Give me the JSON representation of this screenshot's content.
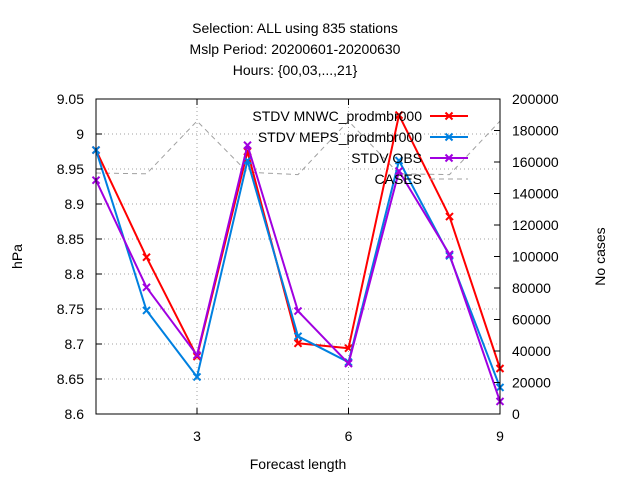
{
  "title_lines": [
    "Selection: ALL using   835 stations",
    "Mslp   Period: 20200601-20200630",
    "Hours: {00,03,...,21}"
  ],
  "chart_data": {
    "type": "line",
    "title": "Selection: ALL using   835 stations | Mslp   Period: 20200601-20200630 | Hours: {00,03,...,21}",
    "xlabel": "Forecast length",
    "ylabel": "hPa",
    "y2label": "No cases",
    "x": [
      1,
      2,
      3,
      4,
      5,
      6,
      7,
      8,
      9
    ],
    "xlim": [
      1,
      9
    ],
    "xticks": [
      3,
      6,
      9
    ],
    "ylim": [
      8.6,
      9.05
    ],
    "yticks": [
      8.6,
      8.65,
      8.7,
      8.75,
      8.8,
      8.85,
      8.9,
      8.95,
      9.0,
      9.05
    ],
    "ytick_labels": [
      "8.6",
      "8.65",
      "8.7",
      "8.75",
      "8.8",
      "8.85",
      "8.9",
      "8.95",
      "9",
      "9.05"
    ],
    "y2lim": [
      0,
      200000
    ],
    "y2ticks": [
      0,
      20000,
      40000,
      60000,
      80000,
      100000,
      120000,
      140000,
      160000,
      180000,
      200000
    ],
    "grid": true,
    "legend_position": "top-right",
    "series": [
      {
        "name": "STDV MNWC_prodmbr000",
        "color": "#ff0000",
        "axis": "left",
        "marker": "x",
        "values": [
          8.977,
          8.824,
          8.682,
          8.975,
          8.701,
          8.694,
          9.027,
          8.882,
          8.665
        ]
      },
      {
        "name": "STDV MEPS_prodmbr000",
        "color": "#0080e0",
        "axis": "left",
        "marker": "x",
        "values": [
          8.977,
          8.748,
          8.653,
          8.962,
          8.711,
          8.674,
          8.962,
          8.826,
          8.638
        ]
      },
      {
        "name": "STDV OBS",
        "color": "#a000e0",
        "axis": "left",
        "marker": "x",
        "values": [
          8.934,
          8.781,
          8.684,
          8.984,
          8.747,
          8.672,
          8.947,
          8.828,
          8.618
        ]
      },
      {
        "name": "CASES",
        "color": "#a0a0a0",
        "axis": "right",
        "dashed": true,
        "marker": "none",
        "values": [
          153000,
          152500,
          186000,
          153500,
          152000,
          186000,
          152500,
          152000,
          186000
        ]
      }
    ]
  }
}
